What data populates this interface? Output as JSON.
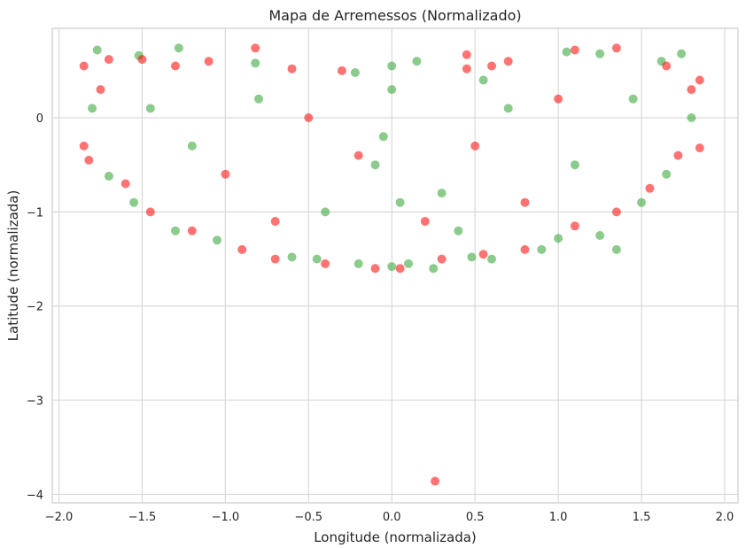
{
  "chart_data": {
    "type": "scatter",
    "title": "Mapa de Arremessos (Normalizado)",
    "xlabel": "Longitude (normalizada)",
    "ylabel": "Latitude (normalizada)",
    "xlim": [
      -2.04,
      2.08
    ],
    "ylim": [
      -4.09,
      0.95
    ],
    "grid": true,
    "style": "whitegrid",
    "x_ticks": [
      -2.0,
      -1.5,
      -1.0,
      -0.5,
      0.0,
      0.5,
      1.0,
      1.5,
      2.0
    ],
    "x_tick_labels": [
      "−2.0",
      "−1.5",
      "−1.0",
      "−0.5",
      "0.0",
      "0.5",
      "1.0",
      "1.5",
      "2.0"
    ],
    "y_ticks": [
      -4,
      -3,
      -2,
      -1,
      0
    ],
    "y_tick_labels": [
      "−4",
      "−3",
      "−2",
      "−1",
      "0"
    ],
    "series": [
      {
        "color": "#2ca02c",
        "alpha": 0.55,
        "points": [
          [
            -1.77,
            0.72
          ],
          [
            -1.52,
            0.66
          ],
          [
            -1.28,
            0.74
          ],
          [
            -0.82,
            0.58
          ],
          [
            -0.22,
            0.48
          ],
          [
            0.0,
            0.55
          ],
          [
            0.15,
            0.6
          ],
          [
            0.55,
            0.4
          ],
          [
            1.05,
            0.7
          ],
          [
            1.25,
            0.68
          ],
          [
            1.62,
            0.6
          ],
          [
            1.74,
            0.68
          ],
          [
            -1.8,
            0.1
          ],
          [
            -1.7,
            -0.62
          ],
          [
            -1.55,
            -0.9
          ],
          [
            -1.3,
            -1.2
          ],
          [
            -1.05,
            -1.3
          ],
          [
            -0.6,
            -1.48
          ],
          [
            -0.45,
            -1.5
          ],
          [
            -0.2,
            -1.55
          ],
          [
            0.0,
            -1.58
          ],
          [
            0.1,
            -1.55
          ],
          [
            0.25,
            -1.6
          ],
          [
            0.48,
            -1.48
          ],
          [
            0.6,
            -1.5
          ],
          [
            0.9,
            -1.4
          ],
          [
            1.0,
            -1.28
          ],
          [
            1.25,
            -1.25
          ],
          [
            1.5,
            -0.9
          ],
          [
            1.65,
            -0.6
          ],
          [
            1.8,
            0.0
          ],
          [
            1.35,
            -1.4
          ],
          [
            -0.1,
            -0.5
          ],
          [
            0.3,
            -0.8
          ],
          [
            -0.8,
            0.2
          ],
          [
            0.7,
            0.1
          ],
          [
            -1.2,
            -0.3
          ],
          [
            1.1,
            -0.5
          ],
          [
            -0.4,
            -1.0
          ],
          [
            0.4,
            -1.2
          ],
          [
            0.0,
            0.3
          ],
          [
            -0.05,
            -0.2
          ],
          [
            0.05,
            -0.9
          ],
          [
            1.45,
            0.2
          ],
          [
            -1.45,
            0.1
          ]
        ]
      },
      {
        "color": "#ff0000",
        "alpha": 0.55,
        "points": [
          [
            -1.85,
            0.55
          ],
          [
            -1.7,
            0.62
          ],
          [
            -1.5,
            0.62
          ],
          [
            -1.3,
            0.55
          ],
          [
            -1.1,
            0.6
          ],
          [
            -0.82,
            0.74
          ],
          [
            -0.6,
            0.52
          ],
          [
            -0.3,
            0.5
          ],
          [
            0.45,
            0.67
          ],
          [
            0.45,
            0.52
          ],
          [
            0.6,
            0.55
          ],
          [
            0.7,
            0.6
          ],
          [
            1.1,
            0.72
          ],
          [
            1.35,
            0.74
          ],
          [
            1.65,
            0.55
          ],
          [
            1.85,
            0.4
          ],
          [
            1.85,
            -0.32
          ],
          [
            1.8,
            0.3
          ],
          [
            -1.85,
            -0.3
          ],
          [
            -1.82,
            -0.45
          ],
          [
            -1.75,
            0.3
          ],
          [
            -1.6,
            -0.7
          ],
          [
            -1.45,
            -1.0
          ],
          [
            -1.2,
            -1.2
          ],
          [
            -0.9,
            -1.4
          ],
          [
            -0.7,
            -1.5
          ],
          [
            -0.4,
            -1.55
          ],
          [
            -0.1,
            -1.6
          ],
          [
            0.05,
            -1.6
          ],
          [
            0.3,
            -1.5
          ],
          [
            0.55,
            -1.45
          ],
          [
            0.8,
            -1.4
          ],
          [
            1.1,
            -1.15
          ],
          [
            1.35,
            -1.0
          ],
          [
            1.55,
            -0.75
          ],
          [
            1.72,
            -0.4
          ],
          [
            0.26,
            -3.86
          ],
          [
            -0.5,
            0.0
          ],
          [
            0.5,
            -0.3
          ],
          [
            1.0,
            0.2
          ],
          [
            -1.0,
            -0.6
          ],
          [
            0.2,
            -1.1
          ],
          [
            -0.2,
            -0.4
          ],
          [
            0.8,
            -0.9
          ],
          [
            -0.7,
            -1.1
          ]
        ]
      }
    ]
  }
}
